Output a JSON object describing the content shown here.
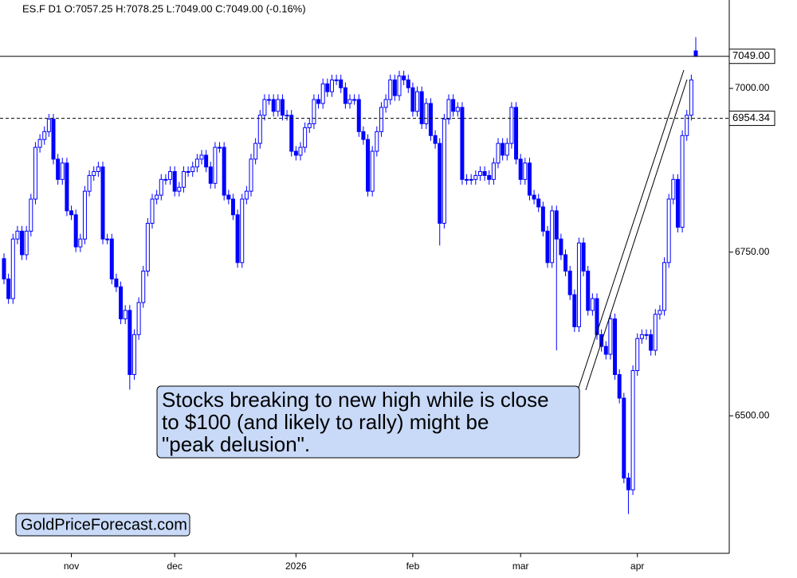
{
  "chart_data": {
    "type": "candlestick",
    "header": "ES.F  D1  O:7057.25  H:7078.25  L:7049.00  C:7049.00  (-0.16%)",
    "annotation": [
      "Stocks breaking to new high while is close",
      "to $100 (and likely to rally) might be",
      "\"peak delusion\"."
    ],
    "watermark": "GoldPriceForecast.com",
    "color": "#0000ff",
    "ylim": [
      6290,
      7135
    ],
    "yticks": [
      {
        "value": 6500,
        "label": "6500.00"
      },
      {
        "value": 6750,
        "label": "6750.00"
      },
      {
        "value": 7000,
        "label": "7000.00"
      }
    ],
    "price_lines": [
      {
        "value": 7049,
        "label": "7049.00",
        "style": "solid"
      },
      {
        "value": 6954.34,
        "label": "6954.34",
        "style": "dashed"
      }
    ],
    "categories": [
      null,
      null,
      null,
      null,
      null,
      null,
      null,
      null,
      null,
      null,
      null,
      null,
      null,
      null,
      null,
      "nov",
      null,
      null,
      null,
      null,
      null,
      null,
      null,
      null,
      null,
      null,
      null,
      null,
      null,
      null,
      null,
      null,
      null,
      null,
      null,
      null,
      null,
      null,
      "dec",
      null,
      null,
      null,
      null,
      null,
      null,
      null,
      null,
      null,
      null,
      null,
      null,
      null,
      null,
      null,
      null,
      null,
      null,
      null,
      null,
      null,
      null,
      null,
      null,
      null,
      null,
      "2026",
      null,
      null,
      null,
      null,
      null,
      null,
      null,
      null,
      null,
      null,
      null,
      null,
      null,
      null,
      null,
      null,
      null,
      null,
      null,
      null,
      null,
      null,
      null,
      null,
      null,
      "feb",
      null,
      null,
      null,
      null,
      null,
      null,
      null,
      null,
      null,
      null,
      null,
      null,
      null,
      null,
      null,
      null,
      null,
      null,
      null,
      null,
      null,
      null,
      null,
      "mar",
      null,
      null,
      null,
      null,
      null,
      null,
      null,
      null,
      null,
      null,
      null,
      null,
      null,
      null,
      null,
      null,
      null,
      null,
      null,
      null,
      null,
      null,
      null,
      null,
      null,
      "apr",
      null,
      null,
      null,
      null,
      null,
      null,
      null,
      null,
      null,
      null,
      null,
      null,
      null
    ],
    "open": [
      6740,
      6709,
      6679,
      6770,
      6782,
      6746,
      6782,
      6831,
      6910,
      6922,
      6934,
      6953,
      6892,
      6861,
      6886,
      6813,
      6807,
      6758,
      6770,
      6843,
      6867,
      6873,
      6880,
      6770,
      6770,
      6709,
      6697,
      6648,
      6661,
      6563,
      6624,
      6673,
      6721,
      6794,
      6831,
      6837,
      6861,
      6861,
      6873,
      6843,
      6849,
      6873,
      6873,
      6880,
      6892,
      6898,
      6880,
      6855,
      6910,
      6910,
      6837,
      6831,
      6807,
      6734,
      6831,
      6843,
      6892,
      6916,
      6959,
      6983,
      6983,
      6965,
      6983,
      6959,
      6959,
      6904,
      6898,
      6910,
      6940,
      6946,
      6983,
      6977,
      7007,
      6995,
      7013,
      7013,
      7001,
      6977,
      6983,
      6983,
      6934,
      6922,
      6843,
      6904,
      6934,
      6971,
      6983,
      7013,
      6989,
      7019,
      7013,
      7001,
      6965,
      6995,
      6946,
      6977,
      6928,
      6916,
      6794,
      6953,
      6983,
      6965,
      6971,
      6861,
      6861,
      6861,
      6867,
      6873,
      6867,
      6861,
      6886,
      6916,
      6898,
      6916,
      6971,
      6892,
      6861,
      6886,
      6837,
      6831,
      6819,
      6782,
      6734,
      6813,
      6770,
      6746,
      6721,
      6685,
      6636,
      6764,
      6721,
      6661,
      6679,
      6624,
      6606,
      6594,
      6648,
      6563,
      6527,
      6405,
      6387,
      6569,
      6618,
      6624,
      6624,
      6600,
      6655,
      6661,
      6734,
      6831,
      6861,
      6788,
      6928,
      6959,
      7057.25
    ],
    "high": [
      6748,
      6717,
      6778,
      6790,
      6790,
      6790,
      6839,
      6918,
      6930,
      6942,
      6961,
      6961,
      6900,
      6894,
      6894,
      6821,
      6815,
      6778,
      6851,
      6875,
      6881,
      6888,
      6888,
      6778,
      6778,
      6717,
      6705,
      6669,
      6669,
      6632,
      6681,
      6729,
      6802,
      6839,
      6845,
      6869,
      6869,
      6881,
      6881,
      6857,
      6881,
      6881,
      6888,
      6900,
      6906,
      6906,
      6888,
      6918,
      6918,
      6918,
      6845,
      6839,
      6815,
      6839,
      6851,
      6900,
      6924,
      6967,
      6991,
      6991,
      6991,
      6991,
      6991,
      6967,
      6967,
      6912,
      6918,
      6948,
      6954,
      6991,
      6991,
      7015,
      7015,
      7021,
      7021,
      7021,
      7009,
      6991,
      6991,
      6991,
      6942,
      6930,
      6912,
      6942,
      6979,
      6991,
      7021,
      7021,
      7027,
      7027,
      7021,
      7009,
      7003,
      7003,
      6985,
      6985,
      6936,
      6924,
      6961,
      6991,
      6991,
      6979,
      6979,
      6869,
      6869,
      6875,
      6881,
      6881,
      6875,
      6894,
      6924,
      6924,
      6924,
      6979,
      6979,
      6900,
      6894,
      6894,
      6845,
      6839,
      6827,
      6790,
      6821,
      6821,
      6778,
      6754,
      6729,
      6693,
      6772,
      6772,
      6729,
      6687,
      6687,
      6632,
      6614,
      6656,
      6656,
      6571,
      6535,
      6413,
      6577,
      6626,
      6632,
      6632,
      6632,
      6663,
      6669,
      6742,
      6839,
      6869,
      6869,
      6936,
      6967,
      7021,
      7078.25
    ],
    "low": [
      6701,
      6671,
      6671,
      6762,
      6738,
      6738,
      6774,
      6823,
      6902,
      6914,
      6926,
      6884,
      6853,
      6853,
      6805,
      6799,
      6750,
      6750,
      6762,
      6835,
      6859,
      6865,
      6762,
      6762,
      6701,
      6689,
      6640,
      6640,
      6540,
      6555,
      6616,
      6665,
      6713,
      6786,
      6823,
      6829,
      6853,
      6853,
      6835,
      6835,
      6841,
      6865,
      6865,
      6872,
      6884,
      6872,
      6847,
      6847,
      6902,
      6829,
      6823,
      6799,
      6726,
      6726,
      6823,
      6835,
      6884,
      6908,
      6951,
      6975,
      6957,
      6957,
      6951,
      6951,
      6896,
      6890,
      6890,
      6902,
      6932,
      6938,
      6969,
      6969,
      6987,
      6987,
      7005,
      6993,
      6969,
      6969,
      6975,
      6926,
      6914,
      6835,
      6835,
      6896,
      6926,
      6963,
      6975,
      6981,
      6981,
      7005,
      6993,
      6957,
      6957,
      6938,
      6938,
      6920,
      6908,
      6760,
      6786,
      6945,
      6957,
      6957,
      6853,
      6853,
      6853,
      6853,
      6859,
      6859,
      6853,
      6853,
      6878,
      6890,
      6890,
      6908,
      6884,
      6853,
      6853,
      6829,
      6823,
      6811,
      6774,
      6726,
      6726,
      6600,
      6738,
      6713,
      6677,
      6628,
      6628,
      6713,
      6653,
      6653,
      6616,
      6598,
      6586,
      6586,
      6555,
      6519,
      6397,
      6350,
      6379,
      6561,
      6610,
      6616,
      6592,
      6592,
      6647,
      6653,
      6726,
      6823,
      6780,
      6780,
      6920,
      6951,
      7049
    ],
    "close": [
      6709,
      6679,
      6770,
      6782,
      6746,
      6782,
      6831,
      6910,
      6922,
      6934,
      6953,
      6892,
      6861,
      6886,
      6813,
      6807,
      6758,
      6770,
      6843,
      6867,
      6873,
      6880,
      6770,
      6770,
      6709,
      6697,
      6648,
      6661,
      6563,
      6624,
      6673,
      6721,
      6794,
      6831,
      6837,
      6861,
      6861,
      6873,
      6843,
      6849,
      6873,
      6873,
      6880,
      6892,
      6898,
      6880,
      6855,
      6910,
      6910,
      6837,
      6831,
      6807,
      6734,
      6831,
      6843,
      6892,
      6916,
      6959,
      6983,
      6983,
      6965,
      6983,
      6959,
      6959,
      6904,
      6898,
      6910,
      6940,
      6946,
      6983,
      6977,
      7007,
      6995,
      7013,
      7013,
      7001,
      6977,
      6983,
      6983,
      6934,
      6922,
      6843,
      6904,
      6934,
      6971,
      6983,
      7013,
      6989,
      7019,
      7013,
      7001,
      6965,
      6995,
      6946,
      6977,
      6928,
      6916,
      6794,
      6953,
      6983,
      6965,
      6971,
      6861,
      6861,
      6861,
      6867,
      6873,
      6867,
      6861,
      6886,
      6916,
      6898,
      6916,
      6971,
      6892,
      6861,
      6886,
      6837,
      6831,
      6819,
      6782,
      6734,
      6813,
      6770,
      6746,
      6721,
      6685,
      6636,
      6764,
      6721,
      6661,
      6679,
      6624,
      6606,
      6594,
      6648,
      6563,
      6527,
      6405,
      6387,
      6569,
      6618,
      6624,
      6624,
      6600,
      6655,
      6661,
      6734,
      6831,
      6861,
      6788,
      6928,
      6959,
      7013,
      7049
    ]
  }
}
